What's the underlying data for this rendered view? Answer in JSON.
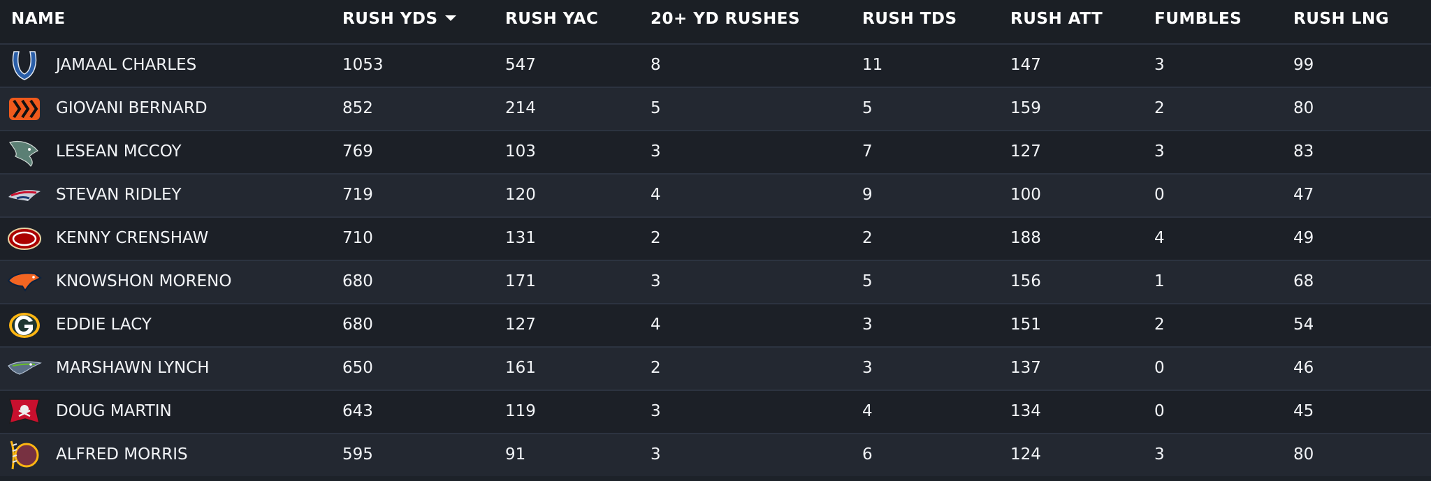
{
  "columns": {
    "name": "NAME",
    "rush_yds": "RUSH YDS",
    "rush_yac": "RUSH YAC",
    "rushes_20": "20+ YD RUSHES",
    "rush_tds": "RUSH TDS",
    "rush_att": "RUSH ATT",
    "fumbles": "FUMBLES",
    "rush_lng": "RUSH LNG"
  },
  "sort": {
    "column": "rush_yds",
    "direction": "descending"
  },
  "colors": {
    "header_bg": "#1b1f25",
    "row_odd": "#1c2027",
    "row_even": "#232831",
    "row_border": "#2c3340",
    "text": "#ffffff"
  },
  "rows": [
    {
      "logo": "colts-horseshoe-icon",
      "name": "JAMAAL CHARLES",
      "rush_yds": "1053",
      "rush_yac": "547",
      "rushes_20": "8",
      "rush_tds": "11",
      "rush_att": "147",
      "fumbles": "3",
      "rush_lng": "99"
    },
    {
      "logo": "bengals-stripes-icon",
      "name": "GIOVANI BERNARD",
      "rush_yds": "852",
      "rush_yac": "214",
      "rushes_20": "5",
      "rush_tds": "5",
      "rush_att": "159",
      "fumbles": "2",
      "rush_lng": "80"
    },
    {
      "logo": "eagles-head-icon",
      "name": "LESEAN MCCOY",
      "rush_yds": "769",
      "rush_yac": "103",
      "rushes_20": "3",
      "rush_tds": "7",
      "rush_att": "127",
      "fumbles": "3",
      "rush_lng": "83"
    },
    {
      "logo": "patriots-flying-elvis-icon",
      "name": "STEVAN RIDLEY",
      "rush_yds": "719",
      "rush_yac": "120",
      "rushes_20": "4",
      "rush_tds": "9",
      "rush_att": "100",
      "fumbles": "0",
      "rush_lng": "47"
    },
    {
      "logo": "49ers-oval-icon",
      "name": "KENNY CRENSHAW",
      "rush_yds": "710",
      "rush_yac": "131",
      "rushes_20": "2",
      "rush_tds": "2",
      "rush_att": "188",
      "fumbles": "4",
      "rush_lng": "49"
    },
    {
      "logo": "broncos-horse-icon",
      "name": "KNOWSHON MORENO",
      "rush_yds": "680",
      "rush_yac": "171",
      "rushes_20": "3",
      "rush_tds": "5",
      "rush_att": "156",
      "fumbles": "1",
      "rush_lng": "68"
    },
    {
      "logo": "packers-g-icon",
      "name": "EDDIE LACY",
      "rush_yds": "680",
      "rush_yac": "127",
      "rushes_20": "4",
      "rush_tds": "3",
      "rush_att": "151",
      "fumbles": "2",
      "rush_lng": "54"
    },
    {
      "logo": "seahawks-head-icon",
      "name": "MARSHAWN LYNCH",
      "rush_yds": "650",
      "rush_yac": "161",
      "rushes_20": "2",
      "rush_tds": "3",
      "rush_att": "137",
      "fumbles": "0",
      "rush_lng": "46"
    },
    {
      "logo": "buccaneers-flag-icon",
      "name": "DOUG MARTIN",
      "rush_yds": "643",
      "rush_yac": "119",
      "rushes_20": "3",
      "rush_tds": "4",
      "rush_att": "134",
      "fumbles": "0",
      "rush_lng": "45"
    },
    {
      "logo": "redskins-feather-icon",
      "name": "ALFRED MORRIS",
      "rush_yds": "595",
      "rush_yac": "91",
      "rushes_20": "3",
      "rush_tds": "6",
      "rush_att": "124",
      "fumbles": "3",
      "rush_lng": "80"
    }
  ]
}
